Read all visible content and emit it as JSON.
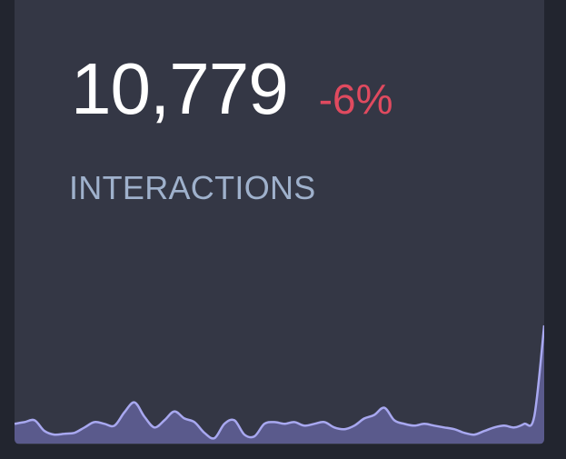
{
  "widget": {
    "value": "10,779",
    "change": "-6%",
    "label": "INTERACTIONS"
  },
  "colors": {
    "card": "#343745",
    "value": "#ffffff",
    "change_negative": "#e04a5f",
    "label": "#9fb1cc",
    "spark_line": "#a8a8f0",
    "spark_fill": "#5a5a8c"
  },
  "chart_data": {
    "type": "area",
    "ylim": [
      0,
      130
    ],
    "values": [
      22,
      24,
      26,
      14,
      10,
      11,
      12,
      18,
      24,
      22,
      20,
      35,
      46,
      30,
      18,
      26,
      36,
      28,
      24,
      12,
      6,
      22,
      26,
      10,
      8,
      22,
      24,
      22,
      24,
      20,
      22,
      24,
      18,
      16,
      20,
      28,
      32,
      40,
      26,
      22,
      20,
      22,
      20,
      18,
      16,
      12,
      10,
      14,
      18,
      20,
      18,
      22,
      30,
      132
    ]
  }
}
